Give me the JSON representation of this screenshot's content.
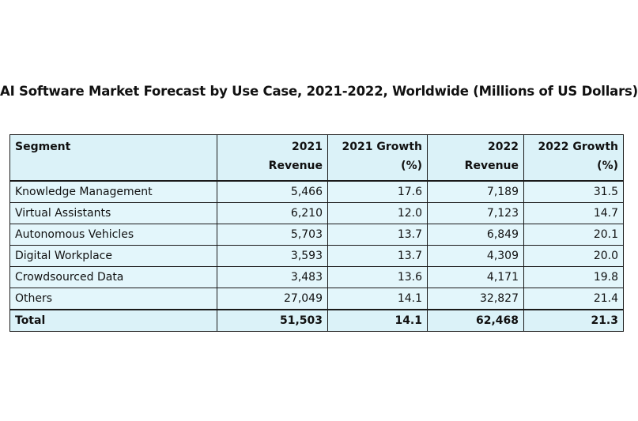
{
  "title": "AI Software Market Forecast by Use Case, 2021-2022, Worldwide (Millions of US  Dollars)",
  "headers": {
    "segment": "Segment",
    "rev2021": [
      "2021",
      "Revenue"
    ],
    "growth2021": [
      "2021 Growth",
      "(%)"
    ],
    "rev2022": [
      "2022",
      "Revenue"
    ],
    "growth2022": [
      "2022 Growth",
      "(%)"
    ]
  },
  "rows": [
    {
      "segment": "Knowledge Management",
      "rev2021": "5,466",
      "growth2021": "17.6",
      "rev2022": "7,189",
      "growth2022": "31.5"
    },
    {
      "segment": "Virtual Assistants",
      "rev2021": "6,210",
      "growth2021": "12.0",
      "rev2022": "7,123",
      "growth2022": "14.7"
    },
    {
      "segment": "Autonomous Vehicles",
      "rev2021": "5,703",
      "growth2021": "13.7",
      "rev2022": "6,849",
      "growth2022": "20.1"
    },
    {
      "segment": "Digital Workplace",
      "rev2021": "3,593",
      "growth2021": "13.7",
      "rev2022": "4,309",
      "growth2022": "20.0"
    },
    {
      "segment": "Crowdsourced Data",
      "rev2021": "3,483",
      "growth2021": "13.6",
      "rev2022": "4,171",
      "growth2022": "19.8"
    },
    {
      "segment": "Others",
      "rev2021": "27,049",
      "growth2021": "14.1",
      "rev2022": "32,827",
      "growth2022": "21.4"
    }
  ],
  "total": {
    "segment": "Total",
    "rev2021": "51,503",
    "growth2021": "14.1",
    "rev2022": "62,468",
    "growth2022": "21.3"
  },
  "colors": {
    "cell_background": "#e3f6fb",
    "header_background": "#dbf2f8",
    "border": "#1a1a1a"
  }
}
